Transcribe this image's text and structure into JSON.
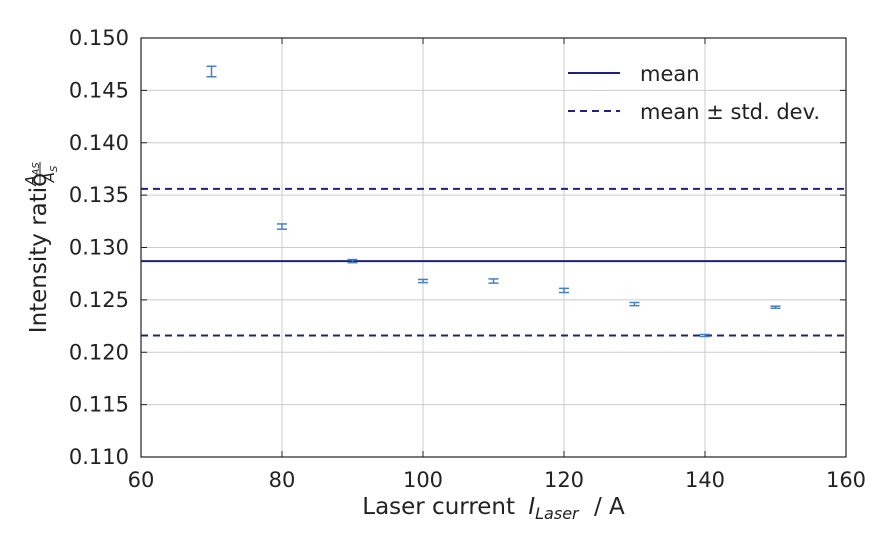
{
  "chart_data": {
    "type": "scatter",
    "xlabel": "Laser current",
    "xlabel_symbol": "I",
    "xlabel_subscript": "Laser",
    "xlabel_unit": "/ A",
    "ylabel": "Intensity ratio",
    "ylabel_fraction_num": "A",
    "ylabel_fraction_num_sub": "AS",
    "ylabel_fraction_den": "A",
    "ylabel_fraction_den_sub": "S",
    "xlim": [
      60,
      160
    ],
    "ylim": [
      0.11,
      0.15
    ],
    "x_ticks": [
      "60",
      "80",
      "100",
      "120",
      "140",
      "160"
    ],
    "y_ticks": [
      "0.110",
      "0.115",
      "0.120",
      "0.125",
      "0.130",
      "0.135",
      "0.140",
      "0.145",
      "0.150"
    ],
    "grid": true,
    "legend_position": "top-right",
    "legend": [
      {
        "label": "mean",
        "style": "solid"
      },
      {
        "label": "mean ± std. dev.",
        "style": "dashed"
      }
    ],
    "series": [
      {
        "x": [
          70,
          80,
          90,
          100,
          110,
          120,
          130,
          140,
          150
        ],
        "y": [
          0.1468,
          0.132,
          0.1287,
          0.1268,
          0.1268,
          0.1259,
          0.1246,
          0.1216,
          0.1243
        ],
        "yerr": [
          0.0005,
          0.00025,
          0.00015,
          0.00015,
          0.0002,
          0.0002,
          0.00015,
          0.0001,
          0.0001
        ]
      }
    ],
    "mean": 0.1287,
    "std_upper": 0.1356,
    "std_lower": 0.1216,
    "colors": {
      "points": "#4a7fc1",
      "lines": "#1a237e"
    }
  }
}
